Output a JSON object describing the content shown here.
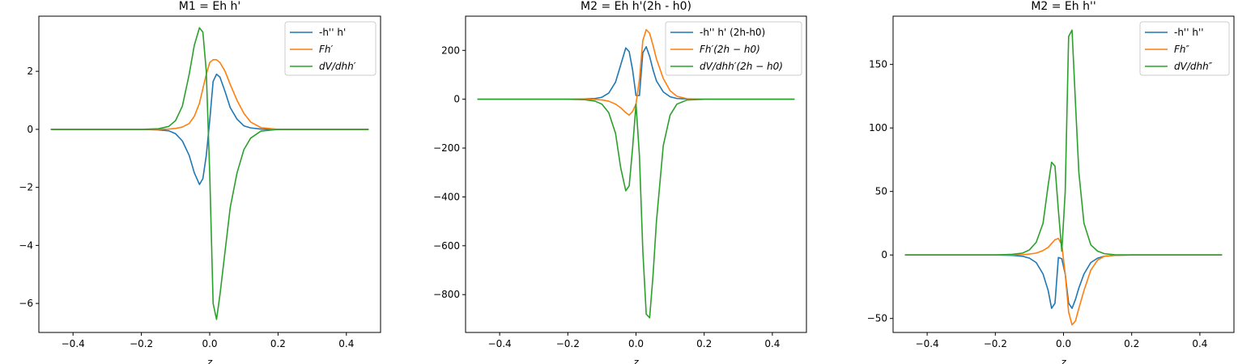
{
  "colors": {
    "series": [
      "#1f77b4",
      "#ff7f0e",
      "#2ca02c"
    ]
  },
  "chart_data": [
    {
      "type": "line",
      "title": "M1 = Eh h'",
      "xlabel": "z",
      "xlim": [
        -0.5,
        0.5
      ],
      "ylim": [
        -7.0,
        3.9
      ],
      "xticks": [
        -0.4,
        -0.2,
        0.0,
        0.2,
        0.4
      ],
      "xtick_labels": [
        "−0.4",
        "−0.2",
        "0.0",
        "0.2",
        "0.4"
      ],
      "yticks": [
        -6,
        -4,
        -2,
        0,
        2
      ],
      "ytick_labels": [
        "−6",
        "−4",
        "−2",
        "0",
        "2"
      ],
      "legend_position": "top-right",
      "x": [
        -0.465,
        -0.2,
        -0.15,
        -0.12,
        -0.1,
        -0.08,
        -0.06,
        -0.045,
        -0.03,
        -0.02,
        -0.01,
        0.0,
        0.01,
        0.02,
        0.03,
        0.045,
        0.06,
        0.08,
        0.1,
        0.12,
        0.15,
        0.2,
        0.465
      ],
      "series": [
        {
          "name": "-h'' h'",
          "math": false,
          "values": [
            0,
            0,
            -0.02,
            -0.05,
            -0.15,
            -0.4,
            -0.9,
            -1.5,
            -1.9,
            -1.7,
            -0.9,
            0.3,
            1.65,
            1.9,
            1.8,
            1.3,
            0.75,
            0.35,
            0.12,
            0.05,
            0.01,
            0,
            0
          ]
        },
        {
          "name": "Fh′",
          "math": true,
          "values": [
            0,
            0,
            0.0,
            0.01,
            0.03,
            0.08,
            0.2,
            0.45,
            0.9,
            1.4,
            1.9,
            2.3,
            2.4,
            2.4,
            2.3,
            2.0,
            1.55,
            1.0,
            0.55,
            0.25,
            0.06,
            0.0,
            0
          ]
        },
        {
          "name": "dV/dhh′",
          "math": true,
          "values": [
            0,
            0,
            0.02,
            0.1,
            0.3,
            0.8,
            1.9,
            2.9,
            3.5,
            3.35,
            2.0,
            -1.5,
            -6.0,
            -6.55,
            -5.7,
            -4.2,
            -2.7,
            -1.5,
            -0.7,
            -0.3,
            -0.06,
            0,
            0
          ]
        }
      ]
    },
    {
      "type": "line",
      "title": "M2 = Eh h'(2h - h0)",
      "xlabel": "z",
      "xlim": [
        -0.5,
        0.5
      ],
      "ylim": [
        -955,
        340
      ],
      "xticks": [
        -0.4,
        -0.2,
        0.0,
        0.2,
        0.4
      ],
      "xtick_labels": [
        "−0.4",
        "−0.2",
        "0.0",
        "0.2",
        "0.4"
      ],
      "yticks": [
        -800,
        -600,
        -400,
        -200,
        0,
        200
      ],
      "ytick_labels": [
        "−800",
        "−600",
        "−400",
        "−200",
        "0",
        "200"
      ],
      "legend_position": "top-right",
      "x": [
        -0.465,
        -0.2,
        -0.15,
        -0.12,
        -0.1,
        -0.08,
        -0.06,
        -0.045,
        -0.03,
        -0.02,
        -0.01,
        0.0,
        0.01,
        0.02,
        0.03,
        0.04,
        0.05,
        0.06,
        0.08,
        0.1,
        0.12,
        0.15,
        0.2,
        0.465
      ],
      "series": [
        {
          "name": "-h'' h' (2h-h0)",
          "math": false,
          "values": [
            0,
            0,
            1,
            3,
            8,
            25,
            70,
            140,
            210,
            195,
            120,
            15,
            15,
            190,
            215,
            175,
            120,
            75,
            30,
            10,
            3,
            1,
            0,
            0
          ]
        },
        {
          "name": "Fh′(2h − h0)",
          "math": true,
          "values": [
            0,
            0,
            0,
            -1,
            -3,
            -8,
            -20,
            -35,
            -55,
            -65,
            -50,
            -20,
            80,
            240,
            285,
            270,
            220,
            165,
            85,
            35,
            12,
            2,
            0,
            0
          ]
        },
        {
          "name": "dV/dhh′(2h − h0)",
          "math": true,
          "values": [
            0,
            0,
            -2,
            -8,
            -20,
            -55,
            -140,
            -280,
            -375,
            -355,
            -200,
            -20,
            -230,
            -620,
            -880,
            -895,
            -720,
            -500,
            -190,
            -65,
            -20,
            -3,
            0,
            0
          ]
        }
      ]
    },
    {
      "type": "line",
      "title": "M2 = Eh h''",
      "xlabel": "z",
      "xlim": [
        -0.5,
        0.5
      ],
      "ylim": [
        -61,
        188
      ],
      "xticks": [
        -0.4,
        -0.2,
        0.0,
        0.2,
        0.4
      ],
      "xtick_labels": [
        "−0.4",
        "−0.2",
        "0.0",
        "0.2",
        "0.4"
      ],
      "yticks": [
        -50,
        0,
        50,
        100,
        150
      ],
      "ytick_labels": [
        "−50",
        "0",
        "50",
        "100",
        "150"
      ],
      "legend_position": "top-right",
      "x": [
        -0.465,
        -0.2,
        -0.15,
        -0.12,
        -0.1,
        -0.08,
        -0.06,
        -0.045,
        -0.035,
        -0.025,
        -0.015,
        -0.005,
        0.005,
        0.015,
        0.025,
        0.035,
        0.045,
        0.06,
        0.08,
        0.1,
        0.12,
        0.15,
        0.2,
        0.465
      ],
      "series": [
        {
          "name": "-h'' h''",
          "math": false,
          "values": [
            0,
            0,
            -0.3,
            -1,
            -2.5,
            -6,
            -15,
            -28,
            -42,
            -38,
            -2,
            -3,
            -15,
            -38,
            -42,
            -35,
            -26,
            -15,
            -6,
            -2.5,
            -1,
            -0.3,
            0,
            0
          ]
        },
        {
          "name": "Fh″",
          "math": true,
          "values": [
            0,
            0,
            0.1,
            0.3,
            0.7,
            1.5,
            3.5,
            6,
            9,
            12,
            13,
            8,
            -15,
            -45,
            -55,
            -52,
            -42,
            -28,
            -12,
            -4,
            -1,
            -0.2,
            0,
            0
          ]
        },
        {
          "name": "dV/dhh″",
          "math": true,
          "values": [
            0,
            0,
            0.5,
            1.5,
            4,
            10,
            25,
            55,
            73,
            70,
            35,
            3,
            50,
            172,
            177,
            120,
            65,
            25,
            8,
            3,
            1,
            0.2,
            0,
            0
          ]
        }
      ]
    }
  ]
}
